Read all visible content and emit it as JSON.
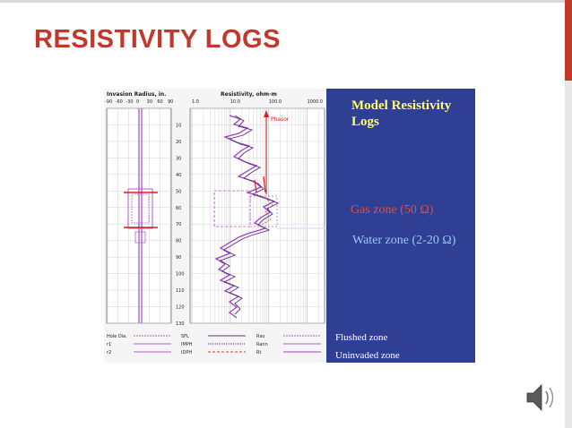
{
  "slide": {
    "title": "RESISTIVITY LOGS"
  },
  "figure": {
    "heading_line1": "Model Resistivity",
    "heading_line2": "Logs",
    "gas_zone_label": "Gas zone (50 Ω)",
    "water_zone_label": "Water zone (2-20 Ω)",
    "flushed_label": "Flushed zone",
    "uninvaded_label": "Uninvaded zone",
    "colors": {
      "background": "#2f3f93",
      "heading": "#ffff66",
      "gas": "#e74c3c",
      "water": "#9fc5f8",
      "trace": "#9b3fbf"
    }
  },
  "log_chart": {
    "left_track_title": "Invasion Radius, in.",
    "left_track_ticks": [
      "-90",
      "-60",
      "-30",
      "0",
      "30",
      "60",
      "90"
    ],
    "right_track_title": "Resistivity, ohm-m",
    "right_track_ticks": [
      "1.0",
      "10.0",
      "100.0",
      "1000.0"
    ],
    "phasor_label": "Phasor",
    "depth_labels": [
      "10",
      "20",
      "30",
      "40",
      "50",
      "60",
      "70",
      "80",
      "90",
      "100",
      "110",
      "120",
      "130"
    ],
    "legend": [
      {
        "label": "Hole Dia."
      },
      {
        "label": "r1"
      },
      {
        "label": "r2"
      },
      {
        "label": "SFL"
      },
      {
        "label": "IMPH"
      },
      {
        "label": "IDPH"
      },
      {
        "label": "Rxo"
      },
      {
        "label": "Rann"
      },
      {
        "label": "Rt"
      }
    ]
  },
  "media": {
    "icon": "speaker-icon"
  }
}
